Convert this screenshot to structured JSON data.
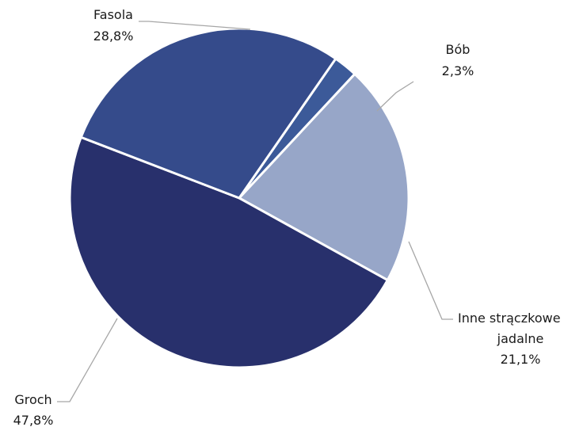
{
  "chart_data": {
    "type": "pie",
    "title": "",
    "value_format": "percent-comma-1dp",
    "slices": [
      {
        "name": "Bób",
        "value": 2.3,
        "label_lines": [
          "Bób",
          "2,3%"
        ],
        "color": "#3c5a99"
      },
      {
        "name": "Inne strączkowe jadalne",
        "value": 21.1,
        "label_lines": [
          "Inne strączkowe",
          "jadalne",
          "21,1%"
        ],
        "color": "#97a6c8"
      },
      {
        "name": "Groch",
        "value": 47.8,
        "label_lines": [
          "Groch",
          "47,8%"
        ],
        "color": "#28306c"
      },
      {
        "name": "Fasola",
        "value": 28.8,
        "label_lines": [
          "Fasola",
          "28,8%"
        ],
        "color": "#354b8b"
      }
    ],
    "legend": "none",
    "leader_line_color": "#a6a6a6"
  }
}
